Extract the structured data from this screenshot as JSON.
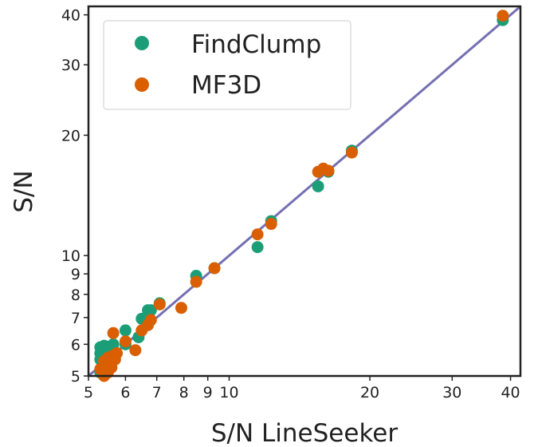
{
  "chart_data": {
    "type": "scatter",
    "xlabel": "S/N LineSeeker",
    "ylabel": "S/N",
    "xscale": "log",
    "yscale": "log",
    "xlim": [
      5,
      42
    ],
    "ylim": [
      5,
      42
    ],
    "xticks": [
      5,
      6,
      7,
      8,
      9,
      10,
      20,
      30,
      40
    ],
    "xtick_labels": [
      "5",
      "6",
      "7",
      "8",
      "9",
      "10",
      "20",
      "30",
      "40"
    ],
    "yticks": [
      5,
      6,
      7,
      8,
      9,
      10,
      20,
      30,
      40
    ],
    "ytick_labels": [
      "5",
      "6",
      "7",
      "8",
      "9",
      "10",
      "20",
      "30",
      "40"
    ],
    "grid": false,
    "legend_position": "top-left",
    "reference_line": {
      "x": [
        5,
        42
      ],
      "y": [
        5,
        42
      ],
      "color": "#7570b3"
    },
    "series": [
      {
        "name": "FindClump",
        "color": "#1b9e77",
        "points": [
          [
            5.3,
            5.9
          ],
          [
            5.3,
            5.7
          ],
          [
            5.3,
            5.5
          ],
          [
            5.35,
            5.4
          ],
          [
            5.4,
            5.95
          ],
          [
            5.45,
            5.8
          ],
          [
            5.5,
            5.6
          ],
          [
            5.5,
            5.9
          ],
          [
            5.55,
            5.75
          ],
          [
            5.6,
            5.5
          ],
          [
            5.6,
            5.95
          ],
          [
            5.65,
            6.0
          ],
          [
            5.4,
            5.3
          ],
          [
            5.5,
            5.2
          ],
          [
            5.3,
            5.1
          ],
          [
            6.0,
            6.0
          ],
          [
            6.0,
            6.5
          ],
          [
            6.4,
            6.25
          ],
          [
            6.5,
            6.95
          ],
          [
            6.7,
            7.3
          ],
          [
            6.8,
            7.3
          ],
          [
            7.1,
            7.6
          ],
          [
            8.5,
            8.9
          ],
          [
            9.3,
            9.3
          ],
          [
            11.5,
            10.5
          ],
          [
            12.3,
            12.2
          ],
          [
            15.5,
            14.9
          ],
          [
            16.3,
            16.2
          ],
          [
            18.3,
            18.3
          ],
          [
            38.5,
            38.8
          ]
        ]
      },
      {
        "name": "MF3D",
        "color": "#d95f02",
        "points": [
          [
            5.3,
            5.2
          ],
          [
            5.4,
            5.45
          ],
          [
            5.45,
            5.3
          ],
          [
            5.5,
            5.55
          ],
          [
            5.5,
            5.1
          ],
          [
            5.55,
            5.4
          ],
          [
            5.6,
            5.6
          ],
          [
            5.65,
            6.4
          ],
          [
            5.7,
            5.5
          ],
          [
            5.75,
            5.7
          ],
          [
            5.6,
            5.25
          ],
          [
            5.4,
            5.0
          ],
          [
            6.0,
            6.1
          ],
          [
            6.3,
            5.8
          ],
          [
            6.5,
            6.5
          ],
          [
            6.7,
            6.7
          ],
          [
            6.8,
            6.9
          ],
          [
            7.1,
            7.55
          ],
          [
            7.9,
            7.4
          ],
          [
            8.5,
            8.6
          ],
          [
            9.3,
            9.3
          ],
          [
            11.5,
            11.3
          ],
          [
            12.3,
            12.0
          ],
          [
            15.5,
            16.2
          ],
          [
            15.9,
            16.5
          ],
          [
            16.3,
            16.3
          ],
          [
            18.3,
            18.1
          ],
          [
            38.5,
            39.8
          ]
        ]
      }
    ]
  }
}
